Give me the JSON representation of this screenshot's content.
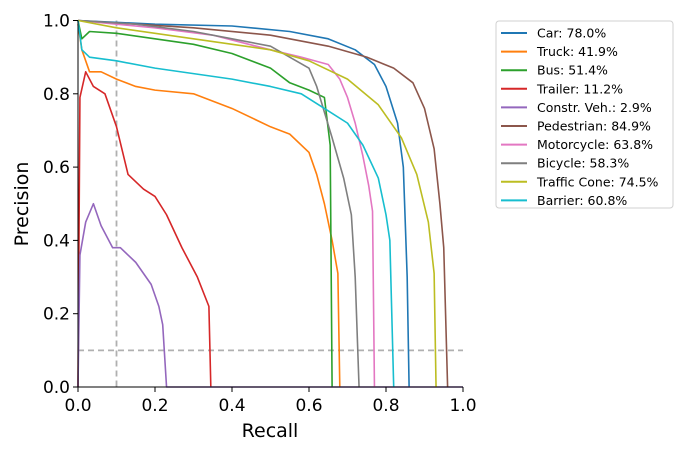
{
  "chart_data": {
    "type": "line",
    "title": "",
    "xlabel": "Recall",
    "ylabel": "Precision",
    "xlim": [
      0,
      1
    ],
    "ylim": [
      0,
      1
    ],
    "xticks": [
      "0.0",
      "0.2",
      "0.4",
      "0.6",
      "0.8",
      "1.0"
    ],
    "yticks": [
      "0.0",
      "0.2",
      "0.4",
      "0.6",
      "0.8",
      "1.0"
    ],
    "grid": false,
    "legend_position": "outside-top-right",
    "reference_lines": {
      "recall": 0.1,
      "precision": 0.1,
      "color": "#b0b0b0",
      "style": "dashed"
    },
    "series": [
      {
        "name": "Car: 78.0%",
        "color": "#1f77b4",
        "points": [
          [
            0,
            1.0
          ],
          [
            0.2,
            0.99
          ],
          [
            0.4,
            0.985
          ],
          [
            0.55,
            0.97
          ],
          [
            0.65,
            0.95
          ],
          [
            0.72,
            0.92
          ],
          [
            0.77,
            0.88
          ],
          [
            0.8,
            0.82
          ],
          [
            0.83,
            0.72
          ],
          [
            0.845,
            0.6
          ],
          [
            0.855,
            0.3
          ],
          [
            0.86,
            0.0
          ]
        ]
      },
      {
        "name": "Truck: 41.9%",
        "color": "#ff7f0e",
        "points": [
          [
            0,
            0.99
          ],
          [
            0.01,
            0.92
          ],
          [
            0.03,
            0.86
          ],
          [
            0.06,
            0.86
          ],
          [
            0.1,
            0.84
          ],
          [
            0.15,
            0.82
          ],
          [
            0.2,
            0.81
          ],
          [
            0.3,
            0.8
          ],
          [
            0.4,
            0.76
          ],
          [
            0.5,
            0.71
          ],
          [
            0.55,
            0.69
          ],
          [
            0.6,
            0.64
          ],
          [
            0.62,
            0.58
          ],
          [
            0.64,
            0.5
          ],
          [
            0.66,
            0.4
          ],
          [
            0.675,
            0.31
          ],
          [
            0.68,
            0.0
          ]
        ]
      },
      {
        "name": "Bus: 51.4%",
        "color": "#2ca02c",
        "points": [
          [
            0,
            1.0
          ],
          [
            0.01,
            0.95
          ],
          [
            0.03,
            0.97
          ],
          [
            0.1,
            0.965
          ],
          [
            0.2,
            0.95
          ],
          [
            0.3,
            0.935
          ],
          [
            0.4,
            0.91
          ],
          [
            0.5,
            0.87
          ],
          [
            0.55,
            0.83
          ],
          [
            0.6,
            0.81
          ],
          [
            0.64,
            0.79
          ],
          [
            0.655,
            0.66
          ],
          [
            0.66,
            0.0
          ]
        ]
      },
      {
        "name": "Trailer: 11.2%",
        "color": "#d62728",
        "points": [
          [
            0,
            0.0
          ],
          [
            0.005,
            0.79
          ],
          [
            0.02,
            0.86
          ],
          [
            0.04,
            0.82
          ],
          [
            0.07,
            0.8
          ],
          [
            0.1,
            0.71
          ],
          [
            0.13,
            0.58
          ],
          [
            0.17,
            0.54
          ],
          [
            0.2,
            0.52
          ],
          [
            0.23,
            0.47
          ],
          [
            0.27,
            0.38
          ],
          [
            0.31,
            0.3
          ],
          [
            0.34,
            0.22
          ],
          [
            0.345,
            0.0
          ]
        ]
      },
      {
        "name": "Constr. Veh.: 2.9%",
        "color": "#9467bd",
        "points": [
          [
            0,
            0.0
          ],
          [
            0.005,
            0.36
          ],
          [
            0.02,
            0.45
          ],
          [
            0.04,
            0.5
          ],
          [
            0.06,
            0.44
          ],
          [
            0.09,
            0.38
          ],
          [
            0.11,
            0.38
          ],
          [
            0.15,
            0.34
          ],
          [
            0.19,
            0.28
          ],
          [
            0.21,
            0.22
          ],
          [
            0.22,
            0.17
          ],
          [
            0.23,
            0.0
          ],
          [
            1.0,
            0.0
          ]
        ]
      },
      {
        "name": "Pedestrian: 84.9%",
        "color": "#8c564b",
        "points": [
          [
            0,
            1.0
          ],
          [
            0.3,
            0.98
          ],
          [
            0.5,
            0.96
          ],
          [
            0.65,
            0.93
          ],
          [
            0.75,
            0.9
          ],
          [
            0.82,
            0.87
          ],
          [
            0.87,
            0.83
          ],
          [
            0.9,
            0.76
          ],
          [
            0.925,
            0.65
          ],
          [
            0.94,
            0.5
          ],
          [
            0.95,
            0.38
          ],
          [
            0.96,
            0.0
          ]
        ]
      },
      {
        "name": "Motorcycle: 63.8%",
        "color": "#e377c2",
        "points": [
          [
            0,
            1.0
          ],
          [
            0.2,
            0.98
          ],
          [
            0.35,
            0.96
          ],
          [
            0.5,
            0.92
          ],
          [
            0.58,
            0.9
          ],
          [
            0.65,
            0.88
          ],
          [
            0.68,
            0.84
          ],
          [
            0.7,
            0.79
          ],
          [
            0.72,
            0.72
          ],
          [
            0.74,
            0.63
          ],
          [
            0.755,
            0.55
          ],
          [
            0.765,
            0.48
          ],
          [
            0.77,
            0.0
          ]
        ]
      },
      {
        "name": "Bicycle: 58.3%",
        "color": "#7f7f7f",
        "points": [
          [
            0,
            1.0
          ],
          [
            0.15,
            0.99
          ],
          [
            0.3,
            0.97
          ],
          [
            0.4,
            0.95
          ],
          [
            0.5,
            0.93
          ],
          [
            0.55,
            0.9
          ],
          [
            0.6,
            0.87
          ],
          [
            0.62,
            0.82
          ],
          [
            0.64,
            0.75
          ],
          [
            0.66,
            0.68
          ],
          [
            0.69,
            0.57
          ],
          [
            0.71,
            0.47
          ],
          [
            0.72,
            0.3
          ],
          [
            0.73,
            0.0
          ]
        ]
      },
      {
        "name": "Traffic Cone: 74.5%",
        "color": "#bcbd22",
        "points": [
          [
            0,
            1.0
          ],
          [
            0.1,
            0.98
          ],
          [
            0.3,
            0.95
          ],
          [
            0.5,
            0.92
          ],
          [
            0.6,
            0.89
          ],
          [
            0.7,
            0.84
          ],
          [
            0.78,
            0.77
          ],
          [
            0.84,
            0.68
          ],
          [
            0.88,
            0.58
          ],
          [
            0.91,
            0.45
          ],
          [
            0.925,
            0.31
          ],
          [
            0.93,
            0.0
          ]
        ]
      },
      {
        "name": "Barrier: 60.8%",
        "color": "#17becf",
        "points": [
          [
            0,
            1.0
          ],
          [
            0.01,
            0.92
          ],
          [
            0.03,
            0.9
          ],
          [
            0.1,
            0.89
          ],
          [
            0.2,
            0.87
          ],
          [
            0.4,
            0.84
          ],
          [
            0.5,
            0.82
          ],
          [
            0.58,
            0.8
          ],
          [
            0.64,
            0.76
          ],
          [
            0.7,
            0.72
          ],
          [
            0.74,
            0.66
          ],
          [
            0.78,
            0.57
          ],
          [
            0.8,
            0.47
          ],
          [
            0.81,
            0.4
          ],
          [
            0.82,
            0.0
          ]
        ]
      }
    ]
  }
}
